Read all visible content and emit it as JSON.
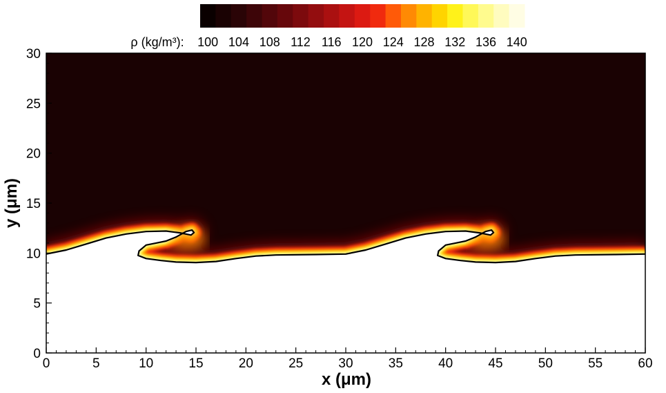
{
  "chart_data": {
    "type": "heatmap",
    "title": "",
    "xlabel": "x (μm)",
    "ylabel": "y (μm)",
    "xlim": [
      0,
      60
    ],
    "ylim": [
      0,
      30
    ],
    "xticks": [
      0,
      5,
      10,
      15,
      20,
      25,
      30,
      35,
      40,
      45,
      50,
      55,
      60
    ],
    "yticks": [
      0,
      5,
      10,
      15,
      20,
      25,
      30
    ],
    "grid": false,
    "colorbar": {
      "title": "ρ (kg/m³):",
      "placement": "top",
      "levels": [
        100,
        102,
        104,
        106,
        108,
        110,
        112,
        114,
        116,
        118,
        120,
        122,
        124,
        126,
        128,
        130,
        132,
        134,
        136,
        138,
        140
      ],
      "tick_labels": [
        "100",
        "104",
        "108",
        "112",
        "116",
        "120",
        "124",
        "128",
        "132",
        "136",
        "140"
      ],
      "colors": [
        "#0a0000",
        "#1a0203",
        "#2a0406",
        "#3d0508",
        "#52060a",
        "#66070b",
        "#7c0a0d",
        "#930d0f",
        "#aa1010",
        "#c41412",
        "#dc1a12",
        "#f02a0e",
        "#ff5a08",
        "#ff8a04",
        "#ffb300",
        "#ffd400",
        "#fff21a",
        "#fff858",
        "#fffb8e",
        "#fffcbf",
        "#fffde4"
      ]
    },
    "upper_fluid_density": 100,
    "lower_fluid": "unshaded (white)",
    "interface_wavelength": 30,
    "interface_mean_y": 10,
    "interface_crest_x": [
      14.5,
      44.5
    ],
    "interface": [
      [
        0,
        9.9
      ],
      [
        2,
        10.3
      ],
      [
        4,
        10.9
      ],
      [
        6,
        11.5
      ],
      [
        8,
        11.9
      ],
      [
        10,
        12.15
      ],
      [
        12,
        12.2
      ],
      [
        13.5,
        12.0
      ],
      [
        14.5,
        11.8
      ],
      [
        14.8,
        12.05
      ],
      [
        14.6,
        12.3
      ],
      [
        14,
        12.15
      ],
      [
        13,
        11.6
      ],
      [
        12,
        11.2
      ],
      [
        11,
        11.0
      ],
      [
        10,
        10.8
      ],
      [
        9.3,
        10.2
      ],
      [
        9.2,
        9.75
      ],
      [
        10,
        9.45
      ],
      [
        11.5,
        9.25
      ],
      [
        13,
        9.1
      ],
      [
        15,
        9.05
      ],
      [
        17,
        9.15
      ],
      [
        19,
        9.45
      ],
      [
        21,
        9.7
      ],
      [
        23,
        9.8
      ],
      [
        27,
        9.85
      ],
      [
        30,
        9.9
      ],
      [
        32,
        10.3
      ],
      [
        34,
        10.9
      ],
      [
        36,
        11.5
      ],
      [
        38,
        11.9
      ],
      [
        40,
        12.15
      ],
      [
        42,
        12.2
      ],
      [
        43.5,
        12.0
      ],
      [
        44.5,
        11.8
      ],
      [
        44.8,
        12.05
      ],
      [
        44.6,
        12.3
      ],
      [
        44,
        12.15
      ],
      [
        43,
        11.6
      ],
      [
        42,
        11.2
      ],
      [
        41,
        11.0
      ],
      [
        40,
        10.8
      ],
      [
        39.3,
        10.2
      ],
      [
        39.2,
        9.75
      ],
      [
        40,
        9.45
      ],
      [
        41.5,
        9.25
      ],
      [
        43,
        9.1
      ],
      [
        45,
        9.05
      ],
      [
        47,
        9.15
      ],
      [
        49,
        9.45
      ],
      [
        51,
        9.7
      ],
      [
        53,
        9.8
      ],
      [
        57,
        9.85
      ],
      [
        60,
        9.9
      ]
    ]
  }
}
